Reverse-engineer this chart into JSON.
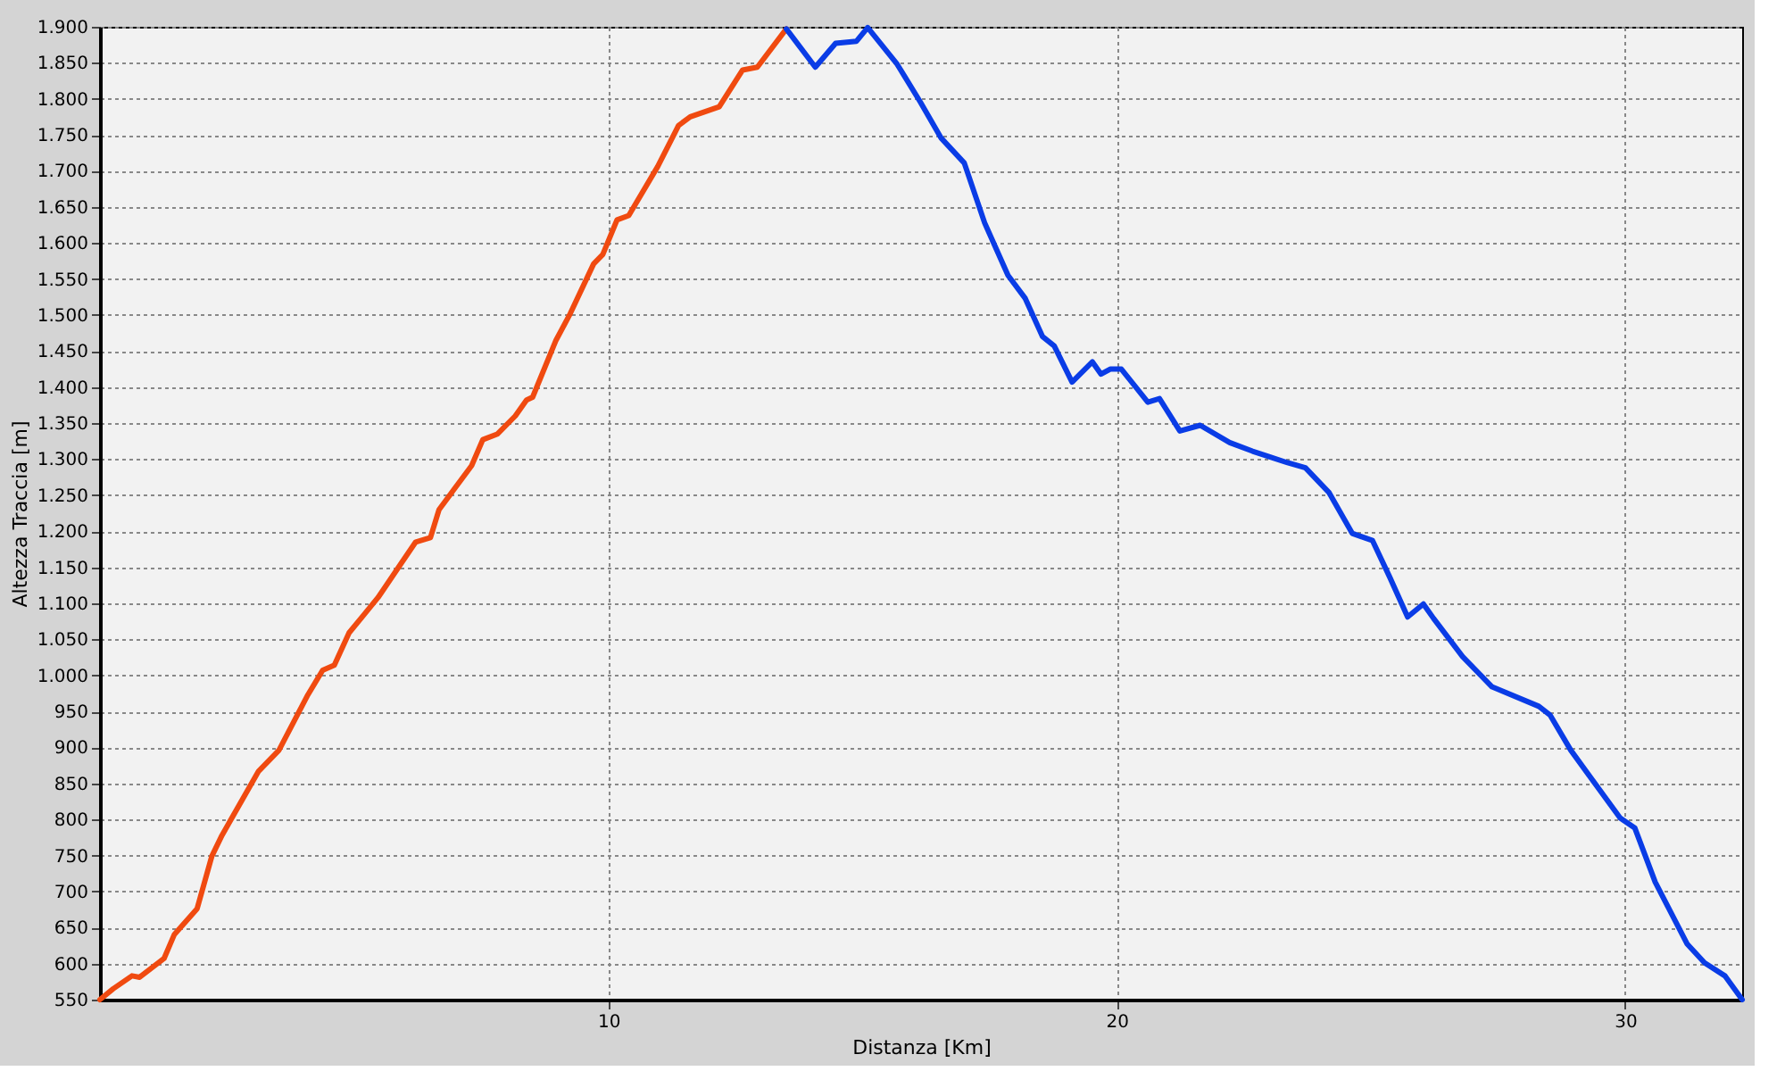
{
  "chart_data": {
    "type": "line",
    "xlabel": "Distanza [Km]",
    "ylabel": "Altezza Traccia [m]",
    "xlim": [
      0,
      32.3
    ],
    "xticks": [
      10,
      20,
      30
    ],
    "ylim": [
      550,
      1900
    ],
    "yticks": [
      550,
      600,
      650,
      700,
      750,
      800,
      850,
      900,
      950,
      {
        "value": 1000,
        "label": "1.000"
      },
      {
        "value": 1050,
        "label": "1.050"
      },
      {
        "value": 1100,
        "label": "1.100"
      },
      {
        "value": 1150,
        "label": "1.150"
      },
      {
        "value": 1200,
        "label": "1.200"
      },
      {
        "value": 1250,
        "label": "1.250"
      },
      {
        "value": 1300,
        "label": "1.300"
      },
      {
        "value": 1350,
        "label": "1.350"
      },
      {
        "value": 1400,
        "label": "1.400"
      },
      {
        "value": 1450,
        "label": "1.450"
      },
      {
        "value": 1500,
        "label": "1.500"
      },
      {
        "value": 1550,
        "label": "1.550"
      },
      {
        "value": 1600,
        "label": "1.600"
      },
      {
        "value": 1650,
        "label": "1.650"
      },
      {
        "value": 1700,
        "label": "1.700"
      },
      {
        "value": 1750,
        "label": "1.750"
      },
      {
        "value": 1800,
        "label": "1.800"
      },
      {
        "value": 1850,
        "label": "1.850"
      },
      {
        "value": 1900,
        "label": "1.900"
      }
    ],
    "grid": true,
    "legend": false,
    "line_style": "solid",
    "series": [
      {
        "color": "#f04a10",
        "x": [
          0,
          0.26,
          0.63,
          0.78,
          1.26,
          1.46,
          1.91,
          2.2,
          2.4,
          3.12,
          3.52,
          4.09,
          4.38,
          4.61,
          4.9,
          5.18,
          5.47,
          5.93,
          6.21,
          6.5,
          6.67,
          7.31,
          7.53,
          7.82,
          8.17,
          8.39,
          8.51,
          8.97,
          9.25,
          9.71,
          9.89,
          10.17,
          10.4,
          10.97,
          11.38,
          11.61,
          12.18,
          12.64,
          12.93,
          13.5
        ],
        "values": [
          550,
          565,
          583,
          581,
          607,
          640,
          676,
          749,
          778,
          867,
          896,
          973,
          1007,
          1014,
          1059,
          1083,
          1108,
          1156,
          1185,
          1191,
          1230,
          1291,
          1327,
          1335,
          1360,
          1382,
          1386,
          1465,
          1502,
          1571,
          1584,
          1632,
          1638,
          1706,
          1763,
          1775,
          1789,
          1840,
          1844,
          1897
        ]
      },
      {
        "color": "#0a3ce6",
        "x": [
          13.5,
          14.07,
          14.47,
          14.88,
          15.1,
          15.68,
          16.14,
          16.54,
          17.0,
          17.4,
          17.86,
          18.2,
          18.54,
          18.77,
          19.12,
          19.52,
          19.69,
          19.87,
          20.09,
          20.61,
          20.84,
          21.24,
          21.64,
          22.22,
          22.67,
          23.36,
          23.71,
          24.17,
          24.63,
          25.03,
          25.37,
          25.72,
          26.03,
          26.23,
          26.8,
          27.38,
          28.3,
          28.52,
          28.93,
          29.9,
          30.19,
          30.59,
          31.22,
          31.56,
          31.96,
          32.3
        ],
        "values": [
          1897,
          1844,
          1877,
          1880,
          1899,
          1848,
          1795,
          1746,
          1711,
          1628,
          1555,
          1523,
          1470,
          1457,
          1407,
          1435,
          1418,
          1425,
          1425,
          1379,
          1384,
          1339,
          1347,
          1323,
          1311,
          1295,
          1288,
          1254,
          1197,
          1187,
          1136,
          1081,
          1099,
          1079,
          1026,
          984,
          957,
          945,
          896,
          802,
          788,
          713,
          627,
          601,
          583,
          550
        ]
      }
    ]
  }
}
